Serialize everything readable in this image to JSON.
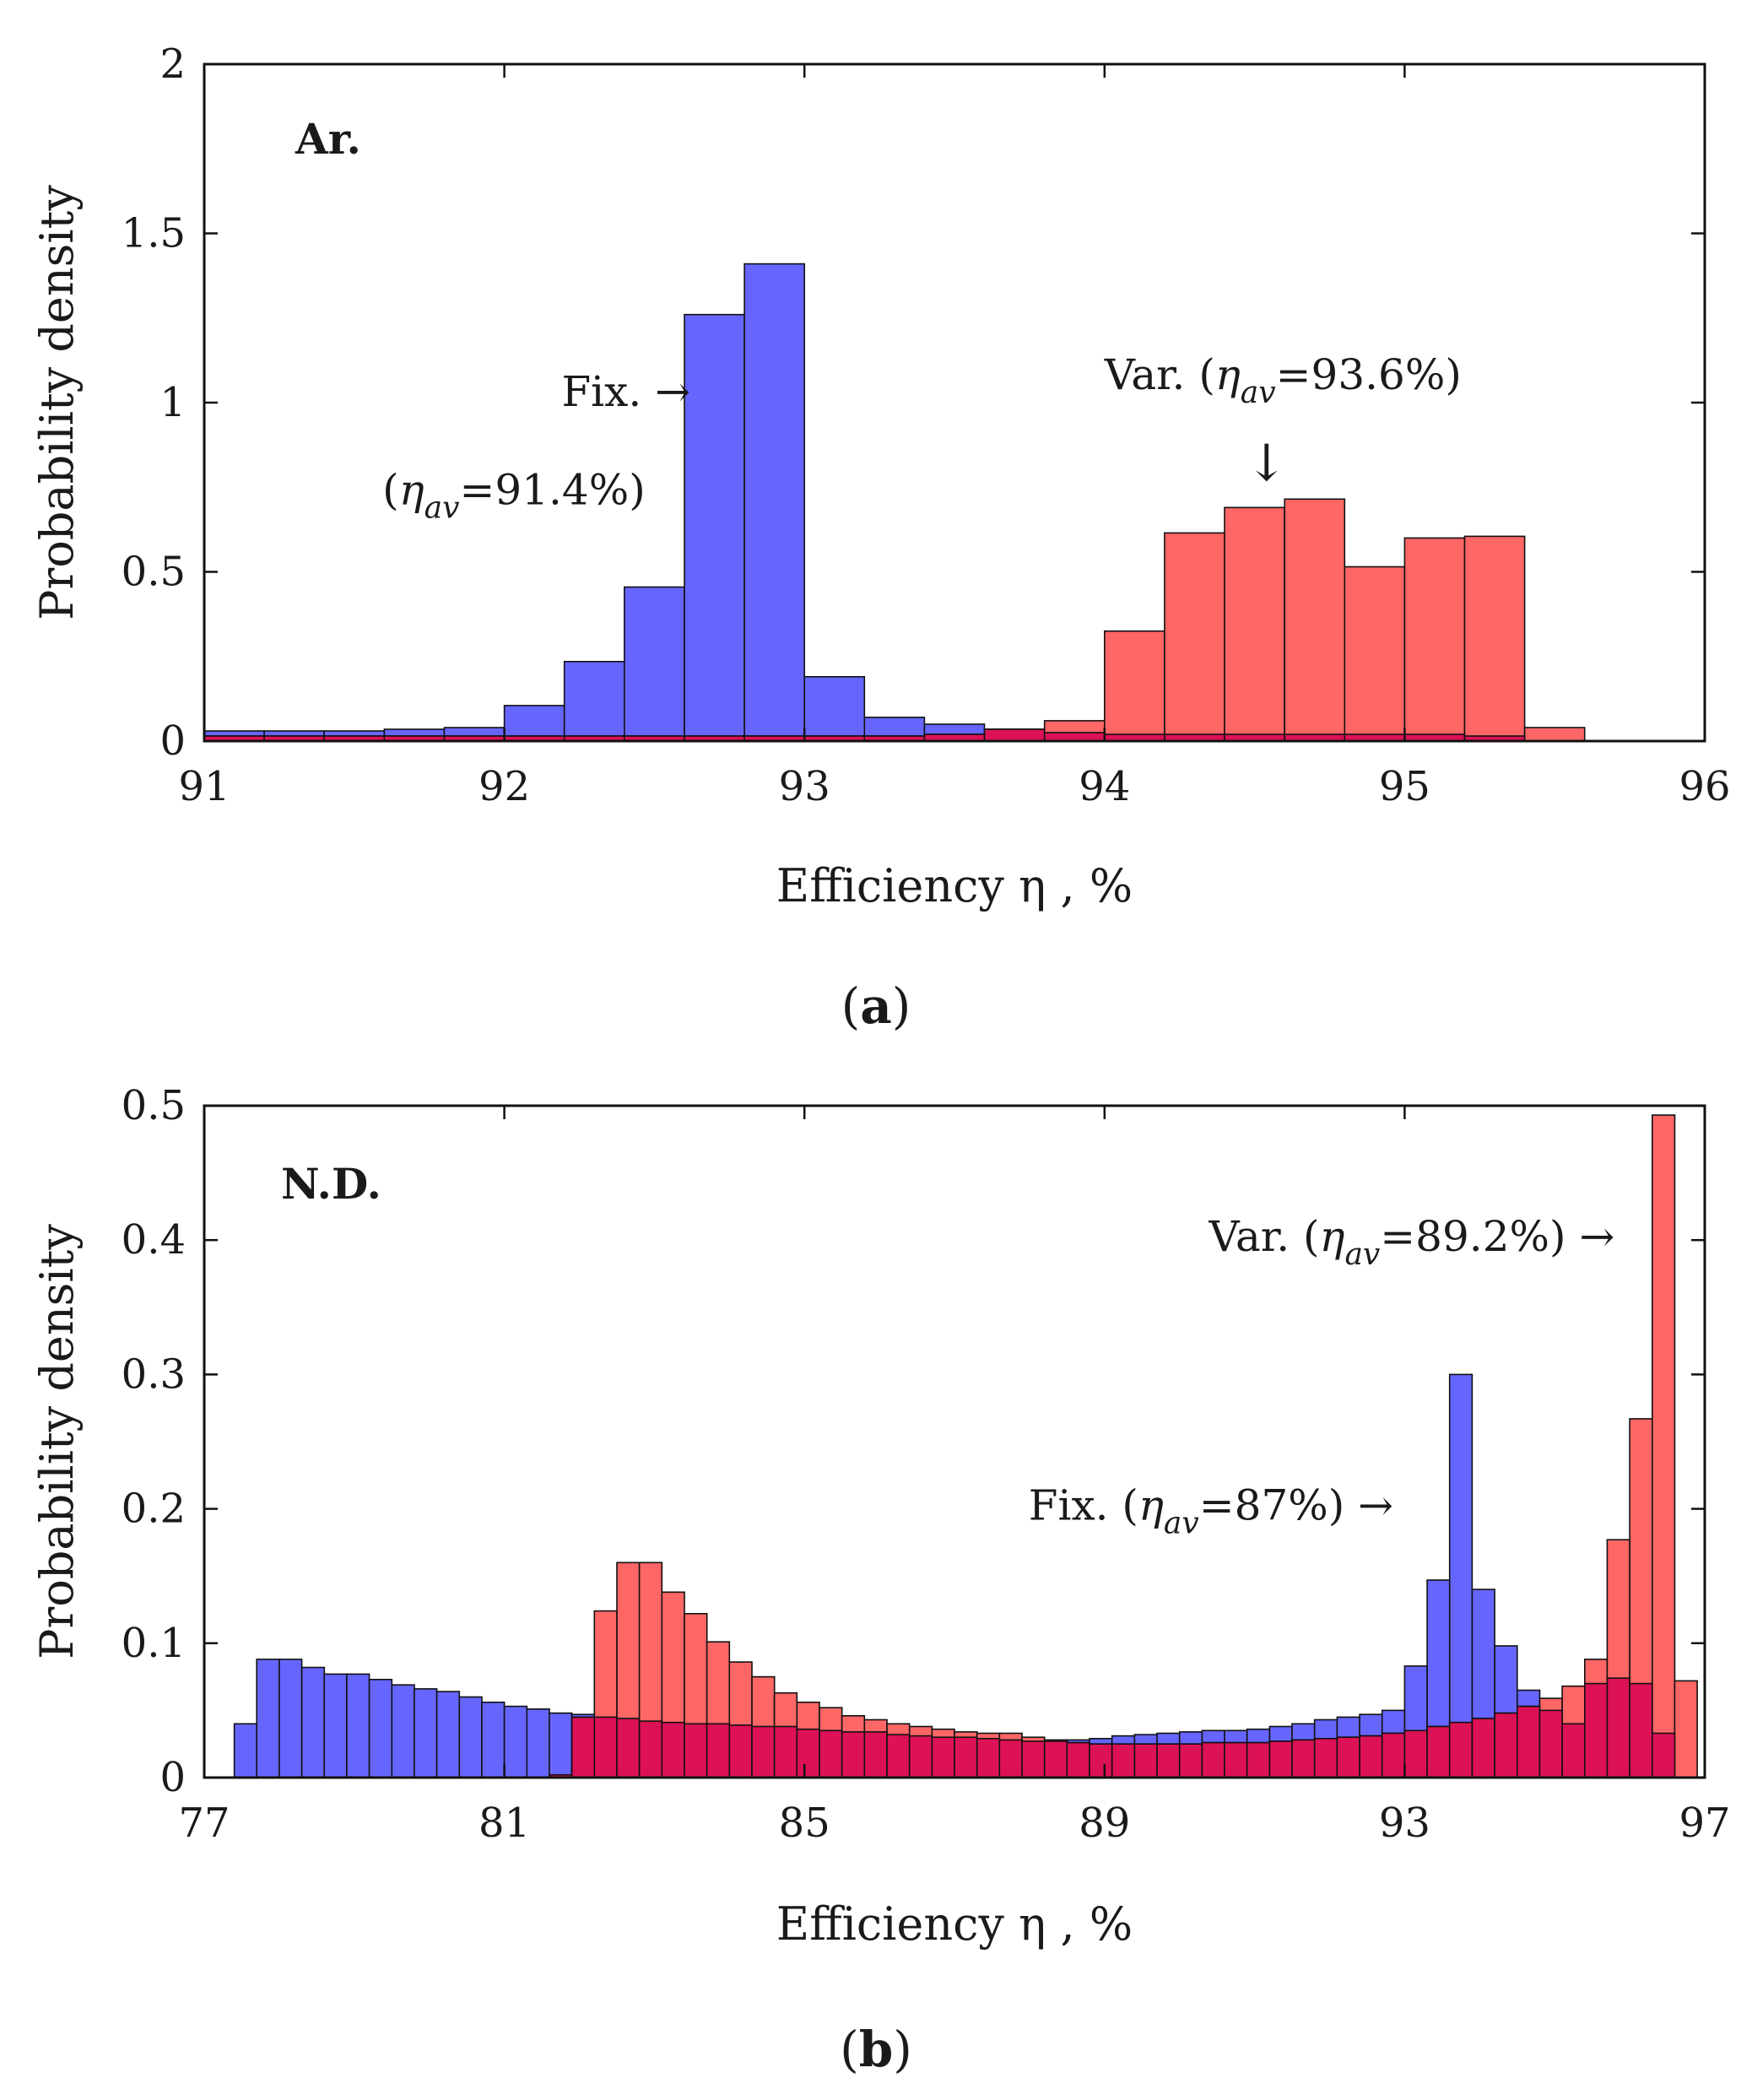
{
  "figure": {
    "colors": {
      "fixed": "#6666ff",
      "variable": "#ff6666",
      "overlap": "#dd1155",
      "edge": "#111111"
    },
    "caption_parens": [
      "(",
      ")"
    ]
  },
  "chart_data": [
    {
      "type": "histogram",
      "panel_label": "Ar.",
      "caption": "a",
      "xlabel": "Efficiency η , %",
      "ylabel": "Probability density",
      "xlim": [
        91,
        96
      ],
      "ylim": [
        0,
        2
      ],
      "xticks": [
        91,
        92,
        93,
        94,
        95,
        96
      ],
      "yticks": [
        0,
        0.5,
        1,
        1.5,
        2
      ],
      "ytick_labels": [
        "0",
        "0.5",
        "1",
        "1.5",
        "2"
      ],
      "grid": false,
      "bins": [
        [
          91.0,
          91.2
        ],
        [
          91.2,
          91.4
        ],
        [
          91.4,
          91.6
        ],
        [
          91.6,
          91.8
        ],
        [
          91.8,
          92.0
        ],
        [
          92.0,
          92.2
        ],
        [
          92.2,
          92.4
        ],
        [
          92.4,
          92.6
        ],
        [
          92.6,
          92.8
        ],
        [
          92.8,
          93.0
        ],
        [
          93.0,
          93.2
        ],
        [
          93.2,
          93.4
        ],
        [
          93.4,
          93.6
        ],
        [
          93.6,
          93.8
        ],
        [
          93.8,
          94.0
        ],
        [
          94.0,
          94.2
        ],
        [
          94.2,
          94.4
        ],
        [
          94.4,
          94.6
        ],
        [
          94.6,
          94.8
        ],
        [
          94.8,
          95.0
        ],
        [
          95.0,
          95.2
        ],
        [
          95.2,
          95.4
        ],
        [
          95.4,
          95.6
        ]
      ],
      "series": [
        {
          "name": "Fix.",
          "color": "#6666ff",
          "values": [
            0.03,
            0.03,
            0.03,
            0.035,
            0.04,
            0.105,
            0.235,
            0.455,
            1.26,
            1.41,
            0.19,
            0.07,
            0.05,
            0.035,
            0.025,
            0.02,
            0.02,
            0.02,
            0.02,
            0.02,
            0.02,
            0.015,
            0
          ]
        },
        {
          "name": "Var.",
          "color": "#ff6666",
          "values": [
            0.015,
            0.015,
            0.015,
            0.015,
            0.015,
            0.015,
            0.015,
            0.015,
            0.015,
            0.015,
            0.015,
            0.015,
            0.02,
            0.035,
            0.06,
            0.325,
            0.615,
            0.69,
            0.715,
            0.515,
            0.6,
            0.605,
            0.04
          ]
        }
      ],
      "annotations": [
        {
          "text": "Fix. →",
          "at": [
            92.62,
            0.99
          ],
          "anchor": "end"
        },
        {
          "prefix": "(",
          "symbol": "η",
          "subscript": "av",
          "suffix": "=91.4%)",
          "at": [
            92.47,
            0.7
          ],
          "anchor": "end"
        },
        {
          "prefix": "Var. (",
          "symbol": "η",
          "subscript": "av",
          "suffix": "=93.6%)",
          "at": [
            94.0,
            1.04
          ],
          "anchor": "start"
        },
        {
          "text": "↓",
          "at": [
            94.54,
            0.77
          ],
          "anchor": "middle"
        }
      ]
    },
    {
      "type": "histogram",
      "panel_label": "N.D.",
      "caption": "b",
      "xlabel": "Efficiency η , %",
      "ylabel": "Probability density",
      "xlim": [
        77,
        97
      ],
      "ylim": [
        0,
        0.5
      ],
      "xticks": [
        77,
        81,
        85,
        89,
        93,
        97
      ],
      "yticks": [
        0,
        0.1,
        0.2,
        0.3,
        0.4,
        0.5
      ],
      "ytick_labels": [
        "0",
        "0.1",
        "0.2",
        "0.3",
        "0.4",
        "0.5"
      ],
      "grid": false,
      "bin_start": 77.4,
      "bin_width": 0.3,
      "series": [
        {
          "name": "Fix.",
          "color": "#6666ff",
          "values": [
            0.04,
            0.088,
            0.088,
            0.082,
            0.077,
            0.077,
            0.073,
            0.069,
            0.066,
            0.064,
            0.06,
            0.056,
            0.053,
            0.051,
            0.048,
            0.047,
            0.045,
            0.044,
            0.042,
            0.041,
            0.04,
            0.04,
            0.039,
            0.038,
            0.038,
            0.036,
            0.035,
            0.034,
            0.034,
            0.032,
            0.031,
            0.03,
            0.03,
            0.029,
            0.028,
            0.027,
            0.027,
            0.028,
            0.029,
            0.031,
            0.032,
            0.033,
            0.034,
            0.035,
            0.035,
            0.036,
            0.038,
            0.04,
            0.043,
            0.045,
            0.047,
            0.05,
            0.083,
            0.147,
            0.3,
            0.14,
            0.098,
            0.065,
            0.05,
            0.04,
            0.07,
            0.074,
            0.07,
            0.033,
            0
          ]
        },
        {
          "name": "Var.",
          "color": "#ff6666",
          "values": [
            0,
            0,
            0,
            0,
            0,
            0,
            0,
            0,
            0,
            0,
            0,
            0,
            0,
            0,
            0.002,
            0.045,
            0.124,
            0.16,
            0.16,
            0.138,
            0.122,
            0.101,
            0.086,
            0.075,
            0.063,
            0.056,
            0.052,
            0.046,
            0.043,
            0.04,
            0.038,
            0.036,
            0.034,
            0.033,
            0.033,
            0.03,
            0.028,
            0.026,
            0.025,
            0.025,
            0.025,
            0.025,
            0.025,
            0.026,
            0.026,
            0.026,
            0.027,
            0.028,
            0.029,
            0.03,
            0.031,
            0.033,
            0.035,
            0.038,
            0.041,
            0.044,
            0.048,
            0.053,
            0.059,
            0.068,
            0.088,
            0.177,
            0.267,
            0.493,
            0.072
          ]
        }
      ],
      "annotations": [
        {
          "prefix": "Var.  (",
          "symbol": "η",
          "subscript": "av",
          "suffix": "=89.2%) →",
          "at": [
            95.8,
            0.392
          ],
          "anchor": "end"
        },
        {
          "prefix": "Fix.  (",
          "symbol": "η",
          "subscript": "av",
          "suffix": "=87%) →",
          "at": [
            92.85,
            0.192
          ],
          "anchor": "end"
        }
      ]
    }
  ]
}
